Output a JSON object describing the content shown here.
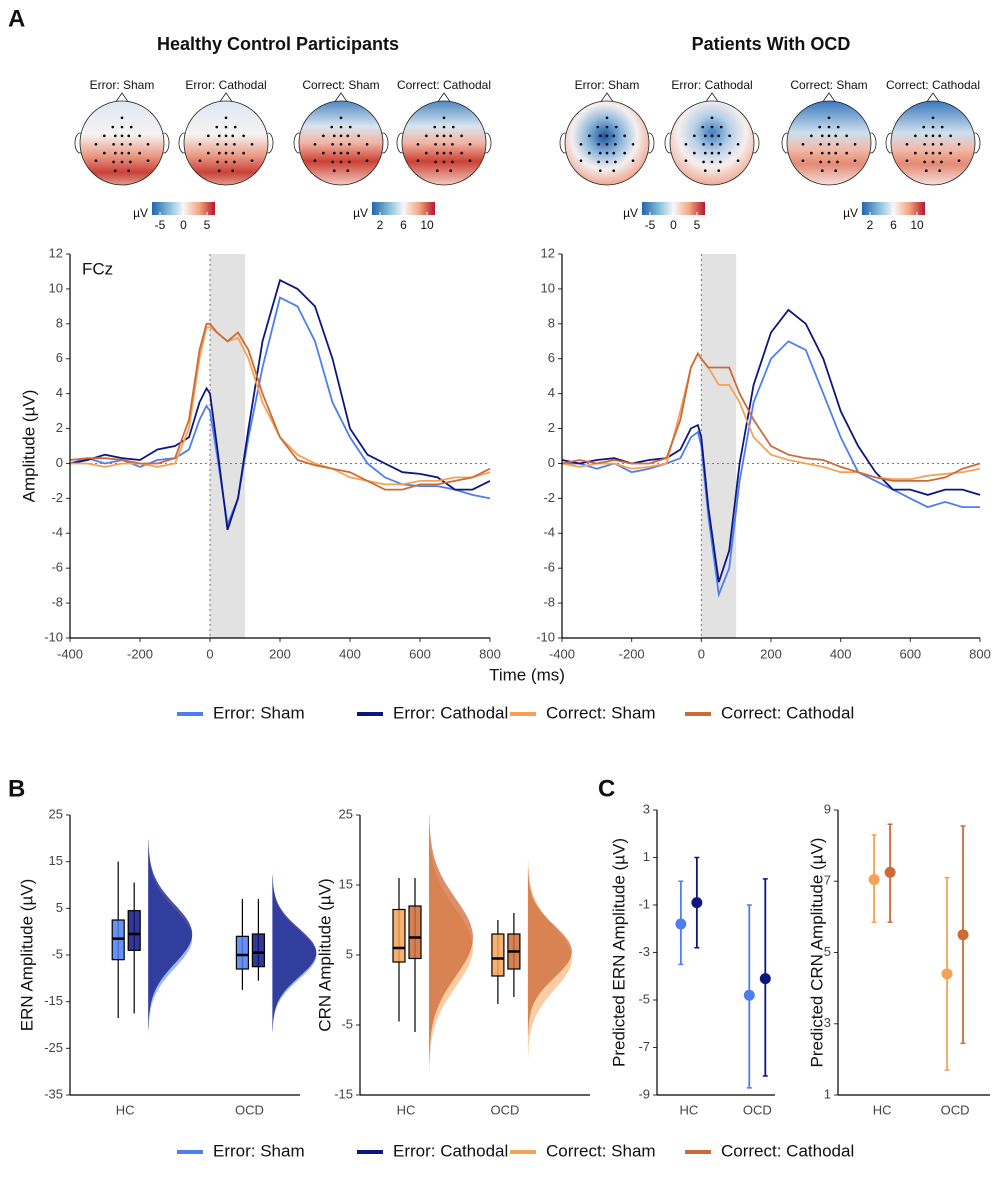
{
  "panel_labels": [
    "A",
    "B",
    "C"
  ],
  "topomaps": [
    {
      "maps": [
        {
          "label": "Error: Sham"
        },
        {
          "label": "Error: Cathodal"
        },
        {
          "label": "Correct: Sham"
        },
        {
          "label": "Correct: Cathodal"
        }
      ],
      "colorbars": [
        {
          "label": "µV",
          "ticks": [
            -5,
            0,
            5
          ]
        },
        {
          "label": "µV",
          "ticks": [
            2,
            6,
            10
          ]
        }
      ]
    },
    {
      "maps": [
        {
          "label": "Error: Sham"
        },
        {
          "label": "Error: Cathodal"
        },
        {
          "label": "Correct: Sham"
        },
        {
          "label": "Correct: Cathodal"
        }
      ],
      "colorbars": [
        {
          "label": "µV",
          "ticks": [
            -5,
            0,
            5
          ]
        },
        {
          "label": "µV",
          "ticks": [
            2,
            6,
            10
          ]
        }
      ]
    }
  ],
  "chart_data": [
    {
      "type": "line",
      "title": "Healthy Control Participants",
      "annotation": "FCz",
      "xlabel": "Time (ms)",
      "ylabel": "Amplitude (µV)",
      "x": [
        -400,
        -350,
        -300,
        -250,
        -200,
        -150,
        -100,
        -60,
        -30,
        -10,
        0,
        20,
        50,
        80,
        110,
        150,
        200,
        250,
        300,
        350,
        400,
        450,
        500,
        550,
        600,
        650,
        700,
        750,
        800
      ],
      "series": [
        {
          "name": "Error: Sham",
          "color": "#4c7ef0",
          "values": [
            0,
            0.3,
            0,
            0.2,
            -0.2,
            0.2,
            0.3,
            0.8,
            2.5,
            3.3,
            3,
            0.5,
            -3.5,
            -2,
            1.5,
            5.5,
            9.5,
            9,
            7,
            3.5,
            1.5,
            0,
            -0.8,
            -1.2,
            -1.3,
            -1.3,
            -1.5,
            -1.8,
            -2
          ]
        },
        {
          "name": "Error: Cathodal",
          "color": "#0d1680",
          "values": [
            0,
            0.2,
            0.5,
            0.3,
            0.2,
            0.8,
            1,
            1.5,
            3.5,
            4.3,
            4,
            1,
            -3.8,
            -2,
            2,
            7,
            10.5,
            10,
            9,
            6,
            2,
            0.5,
            0,
            -0.5,
            -0.6,
            -0.8,
            -1.5,
            -1.5,
            -1
          ]
        },
        {
          "name": "Correct: Sham",
          "color": "#f5a257",
          "values": [
            0,
            0,
            -0.2,
            0,
            0,
            -0.2,
            0,
            2,
            6,
            7.8,
            7.8,
            7.5,
            7,
            7.2,
            6,
            3.5,
            1.5,
            0.5,
            0,
            -0.3,
            -0.8,
            -1,
            -1.2,
            -1.2,
            -1,
            -1,
            -0.8,
            -0.8,
            -0.5
          ]
        },
        {
          "name": "Correct: Cathodal",
          "color": "#cd6b37",
          "values": [
            0.2,
            0.3,
            0.3,
            0.2,
            0,
            0,
            0.3,
            2.5,
            6.5,
            8,
            8,
            7.5,
            7,
            7.5,
            6.5,
            4,
            1.5,
            0.2,
            -0.1,
            -0.3,
            -0.5,
            -1,
            -1.5,
            -1.5,
            -1.2,
            -1.2,
            -1,
            -0.8,
            -0.3
          ]
        }
      ],
      "xlim": [
        -400,
        800
      ],
      "xticks": [
        -400,
        -200,
        0,
        200,
        400,
        600,
        800
      ],
      "ylim": [
        -10,
        12
      ],
      "yticks": [
        -10,
        -8,
        -6,
        -4,
        -2,
        0,
        2,
        4,
        6,
        8,
        10,
        12
      ],
      "shade": [
        0,
        100
      ],
      "vline": 0,
      "hline": 0
    },
    {
      "type": "line",
      "title": "Patients With OCD",
      "x": [
        -400,
        -350,
        -300,
        -250,
        -200,
        -150,
        -100,
        -60,
        -30,
        -10,
        0,
        20,
        50,
        80,
        110,
        150,
        200,
        250,
        300,
        350,
        400,
        450,
        500,
        550,
        600,
        650,
        700,
        750,
        800
      ],
      "series": [
        {
          "color": "#4c7ef0",
          "values": [
            0,
            0,
            -0.3,
            0,
            -0.5,
            -0.3,
            0,
            0.3,
            1.5,
            1.8,
            1,
            -3,
            -7.5,
            -6,
            -1,
            3.5,
            6,
            7,
            6.5,
            4,
            1.5,
            -0.5,
            -1,
            -1.5,
            -2,
            -2.5,
            -2.2,
            -2.5,
            -2.5
          ]
        },
        {
          "color": "#0d1680",
          "values": [
            0.2,
            0,
            0.2,
            0.3,
            0,
            0.2,
            0.3,
            0.8,
            2,
            2.2,
            1.5,
            -2.5,
            -6.8,
            -5,
            0,
            4.5,
            7.5,
            8.8,
            8,
            6,
            3,
            1,
            -0.5,
            -1.5,
            -1.5,
            -1.8,
            -1.5,
            -1.5,
            -1.8
          ]
        },
        {
          "color": "#f5a257",
          "values": [
            0,
            -0.2,
            0,
            0,
            -0.3,
            -0.2,
            0,
            3,
            5.5,
            6.3,
            6,
            5.5,
            4.5,
            4.5,
            3.5,
            1.5,
            0.5,
            0.2,
            0,
            -0.2,
            -0.5,
            -0.5,
            -0.8,
            -0.9,
            -0.9,
            -0.7,
            -0.6,
            -0.5,
            -0.3
          ]
        },
        {
          "color": "#cd6b37",
          "values": [
            0,
            0.2,
            0,
            0.2,
            0,
            0,
            0.3,
            2.5,
            5.5,
            6.3,
            6,
            5.5,
            5.5,
            5.5,
            4,
            2.5,
            1,
            0.5,
            0.3,
            0.2,
            -0.2,
            -0.5,
            -0.8,
            -1,
            -1,
            -1,
            -0.8,
            -0.3,
            0
          ]
        }
      ],
      "xlim": [
        -400,
        800
      ],
      "xticks": [
        -400,
        -200,
        0,
        200,
        400,
        600,
        800
      ],
      "ylim": [
        -10,
        12
      ],
      "yticks": [
        -10,
        -8,
        -6,
        -4,
        -2,
        0,
        2,
        4,
        6,
        8,
        10,
        12
      ],
      "shade": [
        0,
        100
      ],
      "vline": 0,
      "hline": 0
    },
    {
      "type": "raincloud",
      "ylabel": "ERN Amplitude (µV)",
      "categories": [
        "HC",
        "OCD"
      ],
      "ylim": [
        -35,
        25
      ],
      "yticks": [
        -35,
        -25,
        -15,
        -5,
        5,
        15,
        25
      ],
      "series": [
        {
          "name": "Error: Sham",
          "color": "#4c7ef0",
          "min": [
            -18.5,
            -12.5
          ],
          "q1": [
            -6,
            -8
          ],
          "median": [
            -1.5,
            -5
          ],
          "q3": [
            2.5,
            -1
          ],
          "max": [
            15,
            7
          ]
        },
        {
          "name": "Error: Cathodal",
          "color": "#0d1680",
          "min": [
            -17.5,
            -10.5
          ],
          "q1": [
            -4,
            -7.5
          ],
          "median": [
            -0.5,
            -4.5
          ],
          "q3": [
            4.5,
            -0.5
          ],
          "max": [
            10.5,
            7
          ]
        }
      ]
    },
    {
      "type": "raincloud",
      "ylabel": "CRN Amplitude (µV)",
      "categories": [
        "HC",
        "OCD"
      ],
      "ylim": [
        -15,
        25
      ],
      "yticks": [
        -15,
        -5,
        5,
        15,
        25
      ],
      "series": [
        {
          "name": "Correct: Sham",
          "color": "#f5a257",
          "min": [
            -4.5,
            -2
          ],
          "q1": [
            4,
            2
          ],
          "median": [
            6,
            4.5
          ],
          "q3": [
            11.5,
            8
          ],
          "max": [
            16,
            10
          ]
        },
        {
          "name": "Correct: Cathodal",
          "color": "#cd6b37",
          "min": [
            -6,
            -1
          ],
          "q1": [
            4.5,
            3
          ],
          "median": [
            7.5,
            5.5
          ],
          "q3": [
            12,
            8
          ],
          "max": [
            16,
            11
          ]
        }
      ]
    },
    {
      "type": "pointrange",
      "ylabel": "Predicted ERN Amplitude (µV)",
      "categories": [
        "HC",
        "OCD"
      ],
      "ylim": [
        -9,
        3
      ],
      "yticks": [
        -9,
        -7,
        -5,
        -3,
        -1,
        1,
        3
      ],
      "series": [
        {
          "color": "#4c7ef0",
          "values": [
            -1.8,
            -4.8
          ],
          "lower": [
            -3.5,
            -8.7
          ],
          "upper": [
            0,
            -1
          ]
        },
        {
          "color": "#0d1680",
          "values": [
            -0.9,
            -4.1
          ],
          "lower": [
            -2.8,
            -8.2
          ],
          "upper": [
            1,
            0.1
          ]
        }
      ]
    },
    {
      "type": "pointrange",
      "ylabel": "Predicted CRN Amplitude (µV)",
      "categories": [
        "HC",
        "OCD"
      ],
      "ylim": [
        1,
        9
      ],
      "yticks": [
        1,
        3,
        5,
        7,
        9
      ],
      "series": [
        {
          "color": "#f5a257",
          "values": [
            7.05,
            4.4
          ],
          "lower": [
            5.85,
            1.7
          ],
          "upper": [
            8.3,
            7.1
          ]
        },
        {
          "color": "#cd6b37",
          "values": [
            7.25,
            5.5
          ],
          "lower": [
            5.85,
            2.45
          ],
          "upper": [
            8.6,
            8.55
          ]
        }
      ]
    }
  ]
}
